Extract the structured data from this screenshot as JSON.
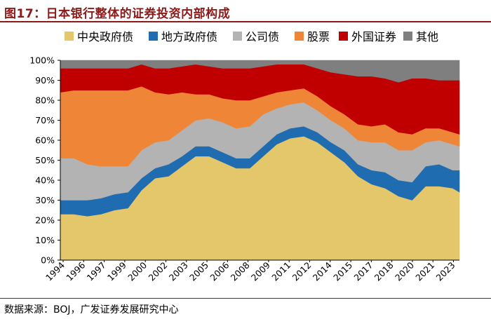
{
  "figure": {
    "title": "图17：日本银行整体的证券投资内部构成",
    "source": "数据来源：BOJ，广发证券发展研究中心"
  },
  "legend_items": [
    {
      "label": "中央政府债",
      "color": "#E5C76B",
      "name": "legend-central-gov-bonds"
    },
    {
      "label": "地方政府债",
      "color": "#1F6CB0",
      "name": "legend-local-gov-bonds"
    },
    {
      "label": "公司债",
      "color": "#B3B3B3",
      "name": "legend-corporate-bonds"
    },
    {
      "label": "股票",
      "color": "#EF8536",
      "name": "legend-stocks"
    },
    {
      "label": "外国证券",
      "color": "#C00000",
      "name": "legend-foreign-securities"
    },
    {
      "label": "其他",
      "color": "#7F7F7F",
      "name": "legend-others"
    }
  ],
  "chart_data": {
    "type": "area",
    "stacked": true,
    "title": "日本银行整体的证券投资内部构成",
    "xlabel": "",
    "ylabel": "",
    "ylim": [
      0,
      100
    ],
    "y_ticks": [
      "0%",
      "10%",
      "20%",
      "30%",
      "40%",
      "50%",
      "60%",
      "70%",
      "80%",
      "90%",
      "100%"
    ],
    "x_tick_labels": [
      "1994",
      "1996",
      "1997",
      "1999",
      "2000",
      "2002",
      "2003",
      "2005",
      "2006",
      "2008",
      "2009",
      "2011",
      "2012",
      "2014",
      "2015",
      "2017",
      "2018",
      "2020",
      "2021",
      "2023"
    ],
    "x": [
      1994,
      1995,
      1996,
      1997,
      1998,
      1999,
      2000,
      2001,
      2002,
      2003,
      2004,
      2005,
      2006,
      2007,
      2008,
      2009,
      2010,
      2011,
      2012,
      2013,
      2014,
      2015,
      2016,
      2017,
      2018,
      2019,
      2020,
      2021,
      2022,
      2023,
      2023.5
    ],
    "series": [
      {
        "name": "中央政府债",
        "color": "#E5C76B",
        "values": [
          23,
          23,
          22,
          23,
          25,
          26,
          35,
          41,
          42,
          47,
          52,
          52,
          49,
          46,
          46,
          52,
          58,
          61,
          62,
          59,
          54,
          49,
          42,
          38,
          36,
          32,
          30,
          37,
          37,
          36,
          34
        ]
      },
      {
        "name": "地方政府债",
        "color": "#1F6CB0",
        "values": [
          7,
          7,
          8,
          8,
          8,
          8,
          6,
          5,
          6,
          5,
          5,
          5,
          5,
          5,
          5,
          5,
          5,
          5,
          5,
          5,
          5,
          6,
          6,
          7,
          8,
          8,
          9,
          10,
          11,
          9,
          11
        ]
      },
      {
        "name": "公司债",
        "color": "#B3B3B3",
        "values": [
          21,
          21,
          18,
          16,
          14,
          13,
          14,
          13,
          12,
          13,
          13,
          14,
          15,
          15,
          16,
          16,
          13,
          12,
          12,
          11,
          11,
          11,
          12,
          14,
          15,
          15,
          16,
          12,
          12,
          13,
          12
        ]
      },
      {
        "name": "股票",
        "color": "#EF8536",
        "values": [
          33,
          34,
          37,
          38,
          38,
          38,
          32,
          25,
          23,
          19,
          13,
          12,
          12,
          14,
          13,
          9,
          8,
          7,
          7,
          7,
          7,
          7,
          8,
          8,
          9,
          9,
          8,
          7,
          6,
          6,
          6
        ]
      },
      {
        "name": "外国证券",
        "color": "#C00000",
        "values": [
          12,
          11,
          11,
          11,
          11,
          11,
          11,
          12,
          13,
          13,
          15,
          14,
          15,
          16,
          16,
          15,
          14,
          13,
          12,
          14,
          17,
          20,
          24,
          25,
          23,
          25,
          28,
          25,
          24,
          26,
          27
        ]
      },
      {
        "name": "其他",
        "color": "#7F7F7F",
        "values": [
          4,
          4,
          4,
          4,
          4,
          4,
          2,
          4,
          4,
          3,
          2,
          3,
          4,
          4,
          4,
          3,
          2,
          2,
          2,
          4,
          6,
          7,
          8,
          8,
          9,
          11,
          9,
          9,
          10,
          10,
          10
        ]
      }
    ]
  }
}
